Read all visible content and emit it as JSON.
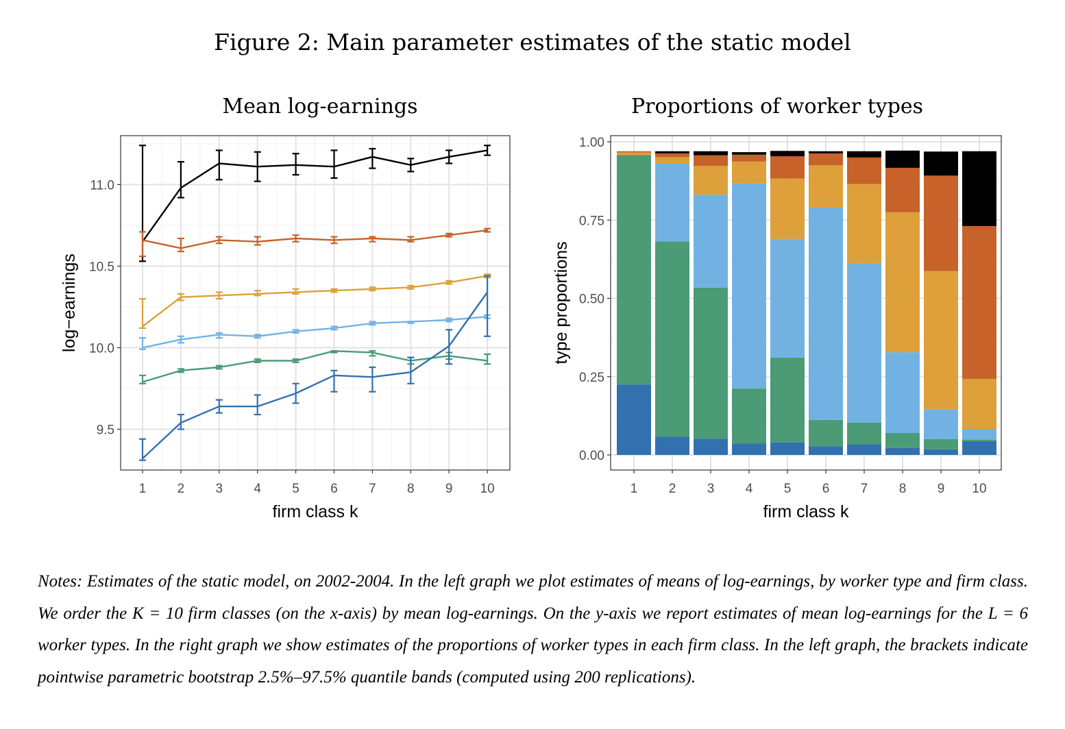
{
  "figure_title": "Figure 2: Main parameter estimates of the static model",
  "colors": {
    "black": "#000000",
    "orange": "#C6622A",
    "gold": "#DDA03A",
    "lightblue": "#72B2E3",
    "green": "#4A9B76",
    "blue": "#3370AF"
  },
  "chart_data": [
    {
      "type": "line",
      "title": "Mean log-earnings",
      "xlabel": "firm class k",
      "ylabel": "log−earnings",
      "x": [
        1,
        2,
        3,
        4,
        5,
        6,
        7,
        8,
        9,
        10
      ],
      "ylim": [
        9.25,
        11.3
      ],
      "yticks": [
        9.5,
        10.0,
        10.5,
        11.0
      ],
      "ytick_labels": [
        "9.5",
        "10.0",
        "10.5",
        "11.0"
      ],
      "grid": true,
      "series": [
        {
          "color": "#000000",
          "values": [
            10.65,
            10.98,
            11.13,
            11.11,
            11.12,
            11.11,
            11.17,
            11.12,
            11.17,
            11.21
          ],
          "lower": [
            10.53,
            10.92,
            11.03,
            11.02,
            11.06,
            11.04,
            11.1,
            11.08,
            11.13,
            11.18
          ],
          "upper": [
            11.24,
            11.14,
            11.21,
            11.2,
            11.19,
            11.21,
            11.22,
            11.16,
            11.21,
            11.24
          ]
        },
        {
          "color": "#C6622A",
          "values": [
            10.66,
            10.61,
            10.66,
            10.65,
            10.67,
            10.66,
            10.67,
            10.66,
            10.69,
            10.72
          ],
          "lower": [
            10.56,
            10.59,
            10.64,
            10.63,
            10.65,
            10.64,
            10.65,
            10.65,
            10.68,
            10.71
          ],
          "upper": [
            10.71,
            10.67,
            10.68,
            10.68,
            10.69,
            10.68,
            10.68,
            10.68,
            10.7,
            10.73
          ]
        },
        {
          "color": "#DDA03A",
          "values": [
            10.13,
            10.31,
            10.32,
            10.33,
            10.34,
            10.35,
            10.36,
            10.37,
            10.4,
            10.44
          ],
          "lower": [
            10.12,
            10.29,
            10.3,
            10.32,
            10.33,
            10.34,
            10.35,
            10.36,
            10.39,
            10.43
          ],
          "upper": [
            10.3,
            10.33,
            10.34,
            10.35,
            10.36,
            10.36,
            10.37,
            10.38,
            10.41,
            10.45
          ]
        },
        {
          "color": "#72B2E3",
          "values": [
            10.0,
            10.05,
            10.08,
            10.07,
            10.1,
            10.12,
            10.15,
            10.16,
            10.17,
            10.19
          ],
          "lower": [
            9.99,
            10.03,
            10.06,
            10.06,
            10.09,
            10.11,
            10.14,
            10.15,
            10.16,
            10.18
          ],
          "upper": [
            10.06,
            10.07,
            10.09,
            10.08,
            10.11,
            10.13,
            10.16,
            10.16,
            10.18,
            10.2
          ]
        },
        {
          "color": "#4A9B76",
          "values": [
            9.79,
            9.86,
            9.88,
            9.92,
            9.92,
            9.98,
            9.97,
            9.92,
            9.95,
            9.92
          ],
          "lower": [
            9.78,
            9.85,
            9.87,
            9.91,
            9.91,
            9.97,
            9.95,
            9.9,
            9.93,
            9.9
          ],
          "upper": [
            9.83,
            9.87,
            9.89,
            9.93,
            9.93,
            9.98,
            9.98,
            9.94,
            9.97,
            9.96
          ]
        },
        {
          "color": "#3370AF",
          "values": [
            9.32,
            9.54,
            9.64,
            9.64,
            9.72,
            9.83,
            9.82,
            9.85,
            10.01,
            10.34
          ],
          "lower": [
            9.31,
            9.5,
            9.6,
            9.59,
            9.66,
            9.73,
            9.73,
            9.78,
            9.9,
            10.07
          ],
          "upper": [
            9.44,
            9.59,
            9.68,
            9.71,
            9.78,
            9.86,
            9.88,
            9.94,
            10.11,
            10.44
          ]
        }
      ]
    },
    {
      "type": "bar",
      "stacked": true,
      "title": "Proportions of worker types",
      "xlabel": "firm class k",
      "ylabel": "type proportions",
      "categories": [
        "1",
        "2",
        "3",
        "4",
        "5",
        "6",
        "7",
        "8",
        "9",
        "10"
      ],
      "ylim": [
        0,
        1.0
      ],
      "yticks": [
        0,
        0.25,
        0.5,
        0.75,
        1.0
      ],
      "ytick_labels": [
        "0.00",
        "0.25",
        "0.50",
        "0.75",
        "1.00"
      ],
      "grid": true,
      "series": [
        {
          "color": "#3370AF",
          "values": [
            0.225,
            0.058,
            0.052,
            0.037,
            0.04,
            0.028,
            0.034,
            0.022,
            0.018,
            0.044
          ]
        },
        {
          "color": "#4A9B76",
          "values": [
            0.733,
            0.624,
            0.482,
            0.175,
            0.271,
            0.084,
            0.069,
            0.048,
            0.033,
            0.005
          ]
        },
        {
          "color": "#72B2E3",
          "values": [
            0.0,
            0.248,
            0.297,
            0.655,
            0.379,
            0.678,
            0.51,
            0.258,
            0.095,
            0.033
          ]
        },
        {
          "color": "#DDA03A",
          "values": [
            0.008,
            0.021,
            0.092,
            0.07,
            0.193,
            0.135,
            0.252,
            0.447,
            0.441,
            0.161
          ]
        },
        {
          "color": "#C6622A",
          "values": [
            0.004,
            0.012,
            0.034,
            0.022,
            0.071,
            0.038,
            0.085,
            0.142,
            0.305,
            0.488
          ]
        },
        {
          "color": "#000000",
          "values": [
            0.0,
            0.007,
            0.013,
            0.008,
            0.017,
            0.007,
            0.02,
            0.055,
            0.077,
            0.239
          ]
        }
      ]
    }
  ],
  "notes": "Notes: Estimates of the static model, on 2002-2004. In the left graph we plot estimates of means of log-earnings, by worker type and firm class. We order the K = 10 firm classes (on the x-axis) by mean log-earnings. On the y-axis we report estimates of mean log-earnings for the L = 6 worker types. In the right graph we show estimates of the proportions of worker types in each firm class. In the left graph, the brackets indicate pointwise parametric bootstrap 2.5%–97.5% quantile bands (computed using 200 replications)."
}
